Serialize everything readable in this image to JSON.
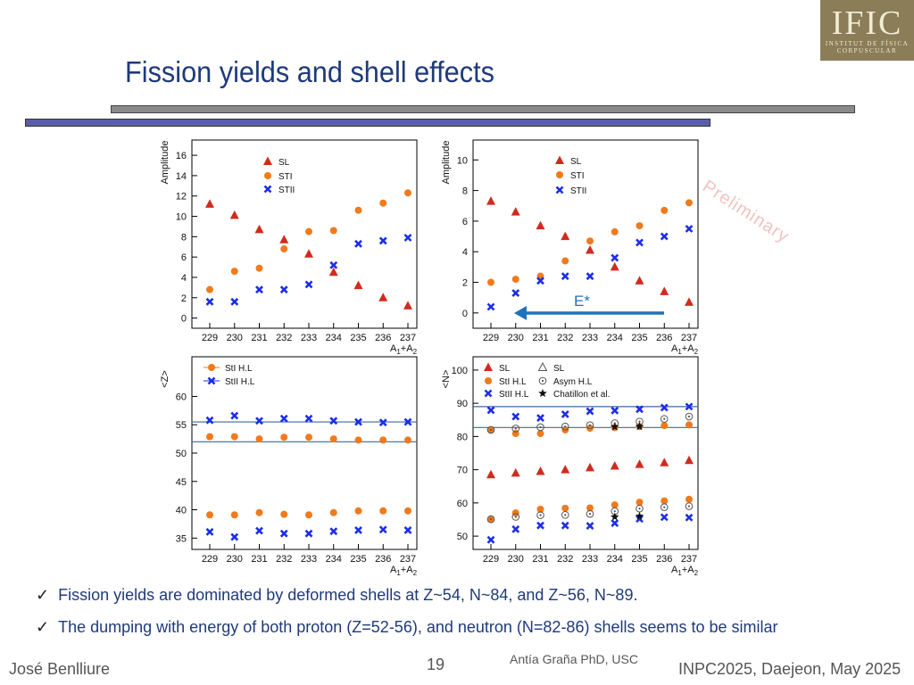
{
  "slide": {
    "title": "Fission yields and shell effects",
    "preliminary": "Preliminary",
    "logo": {
      "main": "IFIC",
      "sub1": "INSTITUT DE FÍSICA",
      "sub2": "CORPUSCULAR"
    },
    "bullets": [
      "Fission yields are dominated by deformed shells at Z~54, N~84, and Z~56, N~89.",
      "The dumping with energy of both proton (Z=52-56), and neutron (N=82-86) shells seems to be similar"
    ],
    "footer": {
      "author": "José Benlliure",
      "page": "19",
      "thesis": "Antía Graña PhD, USC",
      "conference": "INPC2025, Daejeon, May 2025"
    },
    "arrow_label": "E*",
    "colors": {
      "title": "#1f3a7a",
      "red": "#d22a1e",
      "orange": "#f07a1c",
      "blue": "#1c2ee8",
      "hline": "#3a6aa0",
      "arrow": "#1f73b8"
    }
  },
  "chart_data": [
    {
      "id": "p1",
      "type": "scatter",
      "xlabel": "A1+A2",
      "ylabel": "Amplitude",
      "categories": [
        "229",
        "230",
        "231",
        "232",
        "233",
        "234",
        "235",
        "236",
        "237"
      ],
      "ylim": [
        -1,
        17.5
      ],
      "yticks": [
        0,
        2,
        4,
        6,
        8,
        10,
        12,
        14,
        16
      ],
      "legend": [
        "SL",
        "STI",
        "STII"
      ],
      "series": [
        {
          "name": "SL",
          "values": [
            11.2,
            10.1,
            8.7,
            7.7,
            6.3,
            4.5,
            3.2,
            2.0,
            1.2
          ]
        },
        {
          "name": "STI",
          "values": [
            2.8,
            4.6,
            4.9,
            6.8,
            8.5,
            8.6,
            10.6,
            11.3,
            12.3
          ]
        },
        {
          "name": "STII",
          "values": [
            1.6,
            1.6,
            2.8,
            2.8,
            3.3,
            5.2,
            7.3,
            7.6,
            7.9
          ]
        }
      ]
    },
    {
      "id": "p2",
      "type": "scatter",
      "xlabel": "A1+A2",
      "ylabel": "Amplitude",
      "categories": [
        "229",
        "230",
        "231",
        "232",
        "233",
        "234",
        "235",
        "236",
        "237"
      ],
      "ylim": [
        -1,
        11.3
      ],
      "yticks": [
        0,
        2,
        4,
        6,
        8,
        10
      ],
      "legend": [
        "SL",
        "STI",
        "STII"
      ],
      "series": [
        {
          "name": "SL",
          "values": [
            7.3,
            6.6,
            5.7,
            5.0,
            4.1,
            3.0,
            2.1,
            1.4,
            0.7
          ]
        },
        {
          "name": "STI",
          "values": [
            2.0,
            2.2,
            2.4,
            3.4,
            4.7,
            5.3,
            5.7,
            6.7,
            7.2
          ]
        },
        {
          "name": "STII",
          "values": [
            0.4,
            1.3,
            2.1,
            2.4,
            2.4,
            3.6,
            4.6,
            5.0,
            5.5
          ]
        }
      ]
    },
    {
      "id": "p3",
      "type": "scatter",
      "xlabel": "A1+A2",
      "ylabel": "<Z>",
      "categories": [
        "229",
        "230",
        "231",
        "232",
        "233",
        "234",
        "235",
        "236",
        "237"
      ],
      "ylim": [
        33,
        67
      ],
      "yticks": [
        35,
        40,
        45,
        50,
        55,
        60
      ],
      "legend": [
        "StI H.L",
        "StII H.L"
      ],
      "hlines": [
        55.5,
        52.0
      ],
      "series": [
        {
          "name": "StI_high",
          "values": [
            52.9,
            52.9,
            52.5,
            52.8,
            52.8,
            52.5,
            52.3,
            52.3,
            52.3
          ]
        },
        {
          "name": "StI_low",
          "values": [
            39.1,
            39.1,
            39.5,
            39.2,
            39.1,
            39.5,
            39.8,
            39.8,
            39.8
          ]
        },
        {
          "name": "StII_high",
          "values": [
            55.8,
            56.6,
            55.7,
            56.1,
            56.1,
            55.7,
            55.5,
            55.4,
            55.5
          ]
        },
        {
          "name": "StII_low",
          "values": [
            36.1,
            35.2,
            36.3,
            35.8,
            35.8,
            36.2,
            36.4,
            36.5,
            36.4
          ]
        }
      ]
    },
    {
      "id": "p4",
      "type": "scatter",
      "xlabel": "A1+A2",
      "ylabel": "<N>",
      "categories": [
        "229",
        "230",
        "231",
        "232",
        "233",
        "234",
        "235",
        "236",
        "237"
      ],
      "ylim": [
        46,
        104
      ],
      "yticks": [
        50,
        60,
        70,
        80,
        90,
        100
      ],
      "legend": [
        "SL",
        "StI H.L",
        "StII H.L",
        "SL",
        "Asym H.L",
        "Chatillon et al."
      ],
      "hlines": [
        89.0,
        82.7
      ],
      "series": [
        {
          "name": "SL",
          "values": [
            68.5,
            69.0,
            69.5,
            70.0,
            70.6,
            71.1,
            71.6,
            72.1,
            72.8
          ]
        },
        {
          "name": "StI_high",
          "values": [
            81.9,
            80.9,
            80.9,
            82.0,
            82.5,
            82.7,
            83.0,
            83.3,
            83.5
          ]
        },
        {
          "name": "StI_low",
          "values": [
            55.0,
            57.0,
            58.1,
            58.4,
            58.5,
            59.4,
            60.2,
            60.6,
            61.1
          ]
        },
        {
          "name": "StII_high",
          "values": [
            87.9,
            86.0,
            85.6,
            86.7,
            87.6,
            87.8,
            88.2,
            88.7,
            89.0
          ]
        },
        {
          "name": "StII_low",
          "values": [
            48.9,
            52.1,
            53.2,
            53.2,
            53.1,
            53.9,
            55.2,
            55.7,
            55.6
          ]
        },
        {
          "name": "Asym_high",
          "values": [
            82.0,
            82.4,
            82.8,
            83.0,
            83.4,
            84.0,
            84.5,
            85.3,
            86.0
          ]
        },
        {
          "name": "Asym_low",
          "values": [
            55.1,
            55.8,
            56.3,
            56.4,
            56.7,
            57.5,
            58.3,
            58.7,
            59.0
          ]
        },
        {
          "name": "Chatillon_high",
          "values": [
            null,
            null,
            null,
            null,
            null,
            82.9,
            83.0,
            null,
            null
          ]
        },
        {
          "name": "Chatillon_low",
          "values": [
            null,
            null,
            null,
            null,
            null,
            55.8,
            56.0,
            null,
            null
          ]
        }
      ]
    }
  ]
}
